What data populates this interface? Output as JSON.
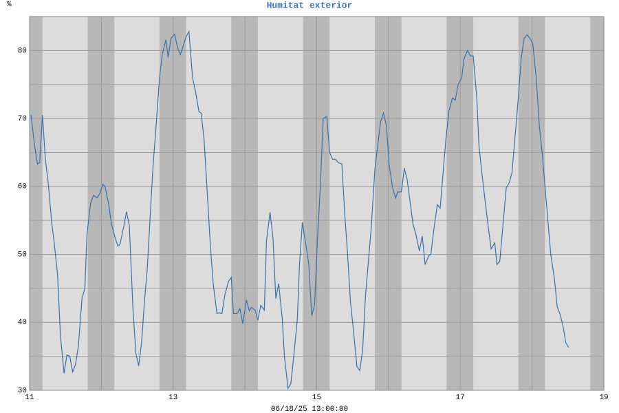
{
  "chart_data": {
    "type": "line",
    "title": "Humitat exterior",
    "y_label": "%",
    "x_label": "06/18/25 13:00:00",
    "xlim": [
      11,
      19
    ],
    "xticks": [
      11,
      13,
      15,
      17,
      19
    ],
    "x_minor_ticks": [
      12,
      14,
      16,
      18
    ],
    "ylim": [
      30,
      85
    ],
    "yticks": [
      30,
      40,
      50,
      60,
      70,
      80
    ],
    "y_minor_ticks": [
      35,
      45,
      55,
      65,
      75
    ],
    "grid": true,
    "shaded_x_ranges": [
      [
        11,
        11.18
      ],
      [
        11.81,
        12.18
      ],
      [
        12.81,
        13.18
      ],
      [
        13.81,
        14.18
      ],
      [
        14.81,
        15.18
      ],
      [
        15.81,
        16.18
      ],
      [
        16.81,
        17.18
      ],
      [
        17.81,
        18.18
      ],
      [
        18.81,
        19
      ]
    ],
    "x": [
      11.02,
      11.07,
      11.11,
      11.14,
      11.18,
      11.22,
      11.26,
      11.31,
      11.34,
      11.39,
      11.43,
      11.48,
      11.52,
      11.56,
      11.6,
      11.64,
      11.68,
      11.73,
      11.77,
      11.8,
      11.85,
      11.89,
      11.94,
      11.98,
      12.02,
      12.05,
      12.1,
      12.14,
      12.19,
      12.23,
      12.26,
      12.31,
      12.35,
      12.39,
      12.44,
      12.48,
      12.52,
      12.56,
      12.6,
      12.64,
      12.69,
      12.72,
      12.77,
      12.81,
      12.85,
      12.9,
      12.93,
      12.97,
      13.02,
      13.06,
      13.1,
      13.15,
      13.18,
      13.22,
      13.27,
      13.31,
      13.36,
      13.39,
      13.43,
      13.47,
      13.52,
      13.56,
      13.61,
      13.64,
      13.68,
      13.72,
      13.77,
      13.81,
      13.84,
      13.89,
      13.93,
      13.97,
      14.02,
      14.06,
      14.09,
      14.14,
      14.18,
      14.22,
      14.27,
      14.3,
      14.35,
      14.39,
      14.43,
      14.47,
      14.52,
      14.55,
      14.6,
      14.64,
      14.68,
      14.73,
      14.76,
      14.8,
      14.84,
      14.89,
      14.93,
      14.97,
      15.01,
      15.05,
      15.09,
      15.14,
      15.18,
      15.22,
      15.26,
      15.3,
      15.35,
      15.39,
      15.43,
      15.47,
      15.51,
      15.56,
      15.6,
      15.64,
      15.68,
      15.72,
      15.76,
      15.81,
      15.85,
      15.89,
      15.93,
      15.97,
      16.01,
      16.06,
      16.1,
      16.13,
      16.18,
      16.22,
      16.26,
      16.31,
      16.34,
      16.38,
      16.43,
      16.47,
      16.51,
      16.56,
      16.59,
      16.63,
      16.68,
      16.72,
      16.76,
      16.8,
      16.84,
      16.89,
      16.93,
      16.97,
      17.02,
      17.05,
      17.1,
      17.14,
      17.18,
      17.23,
      17.26,
      17.3,
      17.35,
      17.39,
      17.43,
      17.48,
      17.51,
      17.55,
      17.6,
      17.64,
      17.68,
      17.72,
      17.76,
      17.8,
      17.85,
      17.89,
      17.93,
      17.97,
      18.01,
      18.06,
      18.1,
      18.14,
      18.18,
      18.22,
      18.26,
      18.31,
      18.35,
      18.39,
      18.43,
      18.47,
      18.51
    ],
    "series": [
      {
        "name": "Humitat",
        "color": "#3a6fa8",
        "values": [
          70.5,
          66,
          63.3,
          63.5,
          70.5,
          64,
          60.5,
          54.5,
          52,
          47,
          38,
          32.5,
          35.2,
          35,
          32.7,
          33.8,
          36.5,
          43.5,
          45,
          53,
          57.5,
          58.7,
          58.3,
          59,
          60.3,
          60,
          57.5,
          54.5,
          52.5,
          51.2,
          51.5,
          54,
          56.3,
          54.2,
          42,
          35.5,
          33.6,
          37,
          43,
          48,
          57.5,
          63,
          70,
          76,
          79.5,
          81.6,
          79,
          81.8,
          82.4,
          80.5,
          79.4,
          81,
          82,
          82.8,
          76,
          74,
          71,
          70.8,
          67,
          60,
          51,
          45.5,
          41.3,
          41.4,
          41.3,
          44,
          46,
          46.6,
          41.3,
          41.3,
          42,
          39.8,
          43.3,
          41.7,
          42.2,
          41.8,
          40.3,
          42.5,
          41.8,
          52,
          56.2,
          52.5,
          43.5,
          45.7,
          40.5,
          35,
          30.3,
          31,
          35,
          40.5,
          48.5,
          54.7,
          52,
          48.5,
          41,
          42.5,
          52,
          60,
          70,
          70.3,
          65,
          64,
          64,
          63.5,
          63.3,
          56,
          50,
          43,
          39,
          33.5,
          32.9,
          36,
          44,
          49,
          54,
          62.5,
          66,
          69.5,
          70.8,
          69,
          63,
          59.7,
          58.3,
          59.2,
          59.2,
          62.7,
          61,
          57,
          54.5,
          53,
          50.5,
          52.7,
          48.5,
          49.8,
          50,
          53.5,
          57.3,
          56.8,
          62,
          67,
          71,
          73,
          72.7,
          75,
          76,
          78.7,
          80,
          79.2,
          79.2,
          73,
          66,
          62,
          57.5,
          54,
          50.8,
          51.7,
          48.5,
          49,
          55,
          59.8,
          60.5,
          62,
          67,
          72,
          79,
          81.8,
          82.3,
          81.8,
          81,
          75.7,
          69,
          65,
          60,
          55,
          50,
          46.5,
          42.3,
          41.2,
          39.5,
          37,
          36.3
        ]
      }
    ]
  }
}
